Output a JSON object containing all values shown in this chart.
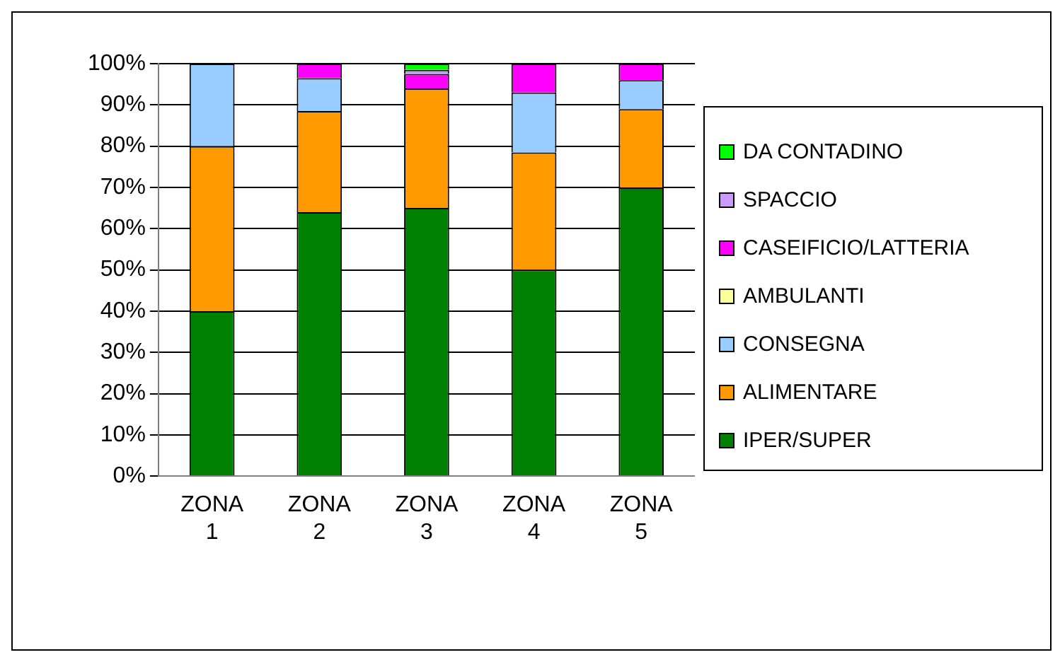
{
  "chart_data": {
    "type": "bar",
    "stacked": true,
    "categories": [
      "ZONA 1",
      "ZONA 2",
      "ZONA 3",
      "ZONA 4",
      "ZONA 5"
    ],
    "series": [
      {
        "name": "IPER/SUPER",
        "color": "#008000",
        "values": [
          40,
          64,
          65,
          50,
          70
        ]
      },
      {
        "name": "ALIMENTARE",
        "color": "#ff9900",
        "values": [
          40,
          24.5,
          29,
          28.5,
          19
        ]
      },
      {
        "name": "CONSEGNA",
        "color": "#99ccff",
        "values": [
          20,
          8,
          null,
          14.5,
          7
        ]
      },
      {
        "name": "AMBULANTI",
        "color": "#ffff99",
        "values": [
          null,
          null,
          null,
          null,
          null
        ]
      },
      {
        "name": "CASEIFICIO/LATTERIA",
        "color": "#ff00ff",
        "values": [
          null,
          3.5,
          3.5,
          7,
          4
        ]
      },
      {
        "name": "SPACCIO",
        "color": "#cc99ff",
        "values": [
          null,
          null,
          1,
          null,
          null
        ]
      },
      {
        "name": "DA CONTADINO",
        "color": "#00ff00",
        "values": [
          null,
          null,
          1.5,
          null,
          null
        ]
      }
    ],
    "ylim": [
      0,
      100
    ],
    "yticks": [
      {
        "value": 0,
        "label": "0%"
      },
      {
        "value": 10,
        "label": "10%"
      },
      {
        "value": 20,
        "label": "20%"
      },
      {
        "value": 30,
        "label": "30%"
      },
      {
        "value": 40,
        "label": "40%"
      },
      {
        "value": 50,
        "label": "50%"
      },
      {
        "value": 60,
        "label": "60%"
      },
      {
        "value": 70,
        "label": "70%"
      },
      {
        "value": 80,
        "label": "80%"
      },
      {
        "value": 90,
        "label": "90%"
      },
      {
        "value": 100,
        "label": "100%"
      }
    ],
    "grid": "y",
    "legend": "right"
  }
}
